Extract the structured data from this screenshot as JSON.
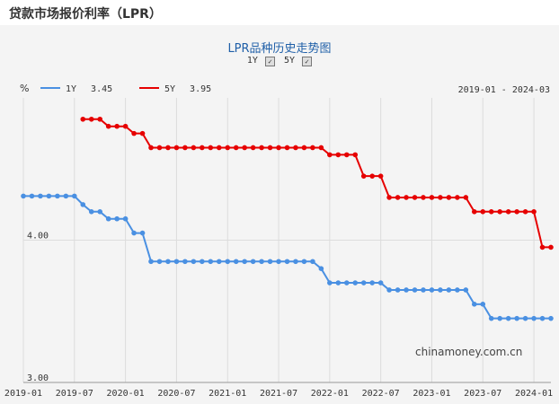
{
  "header": {
    "title": "贷款市场报价利率（LPR）"
  },
  "chart_toolbar": {
    "title": "LPR品种历史走势图",
    "toggles": [
      {
        "label": "1Y",
        "checked": true
      },
      {
        "label": "5Y",
        "checked": true
      }
    ]
  },
  "legend": [
    {
      "name": "1Y",
      "value": "3.45",
      "color": "#4a90e2"
    },
    {
      "name": "5Y",
      "value": "3.95",
      "color": "#e60000"
    }
  ],
  "date_range": "2019-01 - 2024-03",
  "watermark": "chinamoney.com.cn",
  "chart_data": {
    "type": "line",
    "unit": "%",
    "x_axis_ticks": [
      "2019-01",
      "2019-07",
      "2020-01",
      "2020-07",
      "2021-01",
      "2021-07",
      "2022-01",
      "2022-07",
      "2023-01",
      "2023-07",
      "2024-01"
    ],
    "y_axis_ticks": [
      "4.00",
      "3.00"
    ],
    "xlim": [
      "2019-01",
      "2024-03"
    ],
    "ylim": [
      3.0,
      5.0
    ],
    "grid": true,
    "series": [
      {
        "name": "1Y",
        "color": "#4a90e2",
        "points": [
          [
            "2019-01",
            4.31
          ],
          [
            "2019-02",
            4.31
          ],
          [
            "2019-03",
            4.31
          ],
          [
            "2019-04",
            4.31
          ],
          [
            "2019-05",
            4.31
          ],
          [
            "2019-06",
            4.31
          ],
          [
            "2019-07",
            4.31
          ],
          [
            "2019-08",
            4.25
          ],
          [
            "2019-09",
            4.2
          ],
          [
            "2019-10",
            4.2
          ],
          [
            "2019-11",
            4.15
          ],
          [
            "2019-12",
            4.15
          ],
          [
            "2020-01",
            4.15
          ],
          [
            "2020-02",
            4.05
          ],
          [
            "2020-03",
            4.05
          ],
          [
            "2020-04",
            3.85
          ],
          [
            "2020-05",
            3.85
          ],
          [
            "2020-06",
            3.85
          ],
          [
            "2020-07",
            3.85
          ],
          [
            "2020-08",
            3.85
          ],
          [
            "2020-09",
            3.85
          ],
          [
            "2020-10",
            3.85
          ],
          [
            "2020-11",
            3.85
          ],
          [
            "2020-12",
            3.85
          ],
          [
            "2021-01",
            3.85
          ],
          [
            "2021-02",
            3.85
          ],
          [
            "2021-03",
            3.85
          ],
          [
            "2021-04",
            3.85
          ],
          [
            "2021-05",
            3.85
          ],
          [
            "2021-06",
            3.85
          ],
          [
            "2021-07",
            3.85
          ],
          [
            "2021-08",
            3.85
          ],
          [
            "2021-09",
            3.85
          ],
          [
            "2021-10",
            3.85
          ],
          [
            "2021-11",
            3.85
          ],
          [
            "2021-12",
            3.8
          ],
          [
            "2022-01",
            3.7
          ],
          [
            "2022-02",
            3.7
          ],
          [
            "2022-03",
            3.7
          ],
          [
            "2022-04",
            3.7
          ],
          [
            "2022-05",
            3.7
          ],
          [
            "2022-06",
            3.7
          ],
          [
            "2022-07",
            3.7
          ],
          [
            "2022-08",
            3.65
          ],
          [
            "2022-09",
            3.65
          ],
          [
            "2022-10",
            3.65
          ],
          [
            "2022-11",
            3.65
          ],
          [
            "2022-12",
            3.65
          ],
          [
            "2023-01",
            3.65
          ],
          [
            "2023-02",
            3.65
          ],
          [
            "2023-03",
            3.65
          ],
          [
            "2023-04",
            3.65
          ],
          [
            "2023-05",
            3.65
          ],
          [
            "2023-06",
            3.55
          ],
          [
            "2023-07",
            3.55
          ],
          [
            "2023-08",
            3.45
          ],
          [
            "2023-09",
            3.45
          ],
          [
            "2023-10",
            3.45
          ],
          [
            "2023-11",
            3.45
          ],
          [
            "2023-12",
            3.45
          ],
          [
            "2024-01",
            3.45
          ],
          [
            "2024-02",
            3.45
          ],
          [
            "2024-03",
            3.45
          ]
        ]
      },
      {
        "name": "5Y",
        "color": "#e60000",
        "points": [
          [
            "2019-08",
            4.85
          ],
          [
            "2019-09",
            4.85
          ],
          [
            "2019-10",
            4.85
          ],
          [
            "2019-11",
            4.8
          ],
          [
            "2019-12",
            4.8
          ],
          [
            "2020-01",
            4.8
          ],
          [
            "2020-02",
            4.75
          ],
          [
            "2020-03",
            4.75
          ],
          [
            "2020-04",
            4.65
          ],
          [
            "2020-05",
            4.65
          ],
          [
            "2020-06",
            4.65
          ],
          [
            "2020-07",
            4.65
          ],
          [
            "2020-08",
            4.65
          ],
          [
            "2020-09",
            4.65
          ],
          [
            "2020-10",
            4.65
          ],
          [
            "2020-11",
            4.65
          ],
          [
            "2020-12",
            4.65
          ],
          [
            "2021-01",
            4.65
          ],
          [
            "2021-02",
            4.65
          ],
          [
            "2021-03",
            4.65
          ],
          [
            "2021-04",
            4.65
          ],
          [
            "2021-05",
            4.65
          ],
          [
            "2021-06",
            4.65
          ],
          [
            "2021-07",
            4.65
          ],
          [
            "2021-08",
            4.65
          ],
          [
            "2021-09",
            4.65
          ],
          [
            "2021-10",
            4.65
          ],
          [
            "2021-11",
            4.65
          ],
          [
            "2021-12",
            4.65
          ],
          [
            "2022-01",
            4.6
          ],
          [
            "2022-02",
            4.6
          ],
          [
            "2022-03",
            4.6
          ],
          [
            "2022-04",
            4.6
          ],
          [
            "2022-05",
            4.45
          ],
          [
            "2022-06",
            4.45
          ],
          [
            "2022-07",
            4.45
          ],
          [
            "2022-08",
            4.3
          ],
          [
            "2022-09",
            4.3
          ],
          [
            "2022-10",
            4.3
          ],
          [
            "2022-11",
            4.3
          ],
          [
            "2022-12",
            4.3
          ],
          [
            "2023-01",
            4.3
          ],
          [
            "2023-02",
            4.3
          ],
          [
            "2023-03",
            4.3
          ],
          [
            "2023-04",
            4.3
          ],
          [
            "2023-05",
            4.3
          ],
          [
            "2023-06",
            4.2
          ],
          [
            "2023-07",
            4.2
          ],
          [
            "2023-08",
            4.2
          ],
          [
            "2023-09",
            4.2
          ],
          [
            "2023-10",
            4.2
          ],
          [
            "2023-11",
            4.2
          ],
          [
            "2023-12",
            4.2
          ],
          [
            "2024-01",
            4.2
          ],
          [
            "2024-02",
            3.95
          ],
          [
            "2024-03",
            3.95
          ]
        ]
      }
    ]
  }
}
